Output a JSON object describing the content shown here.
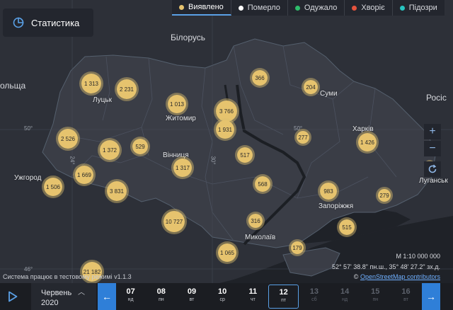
{
  "header": {
    "stat_button": "Статистика"
  },
  "filters": [
    {
      "label": "Виявлено",
      "color": "#e6c36e",
      "active": true
    },
    {
      "label": "Померло",
      "color": "#ffffff",
      "active": false
    },
    {
      "label": "Одужало",
      "color": "#2ebd6b",
      "active": false
    },
    {
      "label": "Хворіє",
      "color": "#e5533d",
      "active": false
    },
    {
      "label": "Підозри",
      "color": "#27c4c0",
      "active": false
    }
  ],
  "map": {
    "countries": {
      "belarus": "Білорусь",
      "poland": "ольща",
      "russia": "Росіс"
    },
    "places": {
      "lutsk": "Луцьк",
      "zhytomyr": "Житомир",
      "sumy": "Суми",
      "kharkiv": "Харків",
      "vinnytsia": "Вінниця",
      "uzhhorod": "Ужгород",
      "luhansk": "Луганськ",
      "zaporizhzhia": "Запоріжжя",
      "mykolaiv": "Миколаїв"
    },
    "grid": {
      "lat50_left": "50°",
      "lat50_mid": "50°",
      "lon24": "24°",
      "lon30": "30°",
      "lat46": "46°"
    },
    "clusters": [
      {
        "id": "c1313",
        "value": "1 313"
      },
      {
        "id": "c2231",
        "value": "2 231"
      },
      {
        "id": "c366",
        "value": "366"
      },
      {
        "id": "c204",
        "value": "204"
      },
      {
        "id": "c1013",
        "value": "1 013"
      },
      {
        "id": "c3766",
        "value": "3 766"
      },
      {
        "id": "c1931",
        "value": "1 931"
      },
      {
        "id": "c2526",
        "value": "2 526"
      },
      {
        "id": "c1372",
        "value": "1 372"
      },
      {
        "id": "c529",
        "value": "529"
      },
      {
        "id": "c277",
        "value": "277"
      },
      {
        "id": "c1426",
        "value": "1 426"
      },
      {
        "id": "c517",
        "value": "517"
      },
      {
        "id": "c1317",
        "value": "1 317"
      },
      {
        "id": "c1669",
        "value": "1 669"
      },
      {
        "id": "c1506",
        "value": "1 506"
      },
      {
        "id": "c3831",
        "value": "3 831"
      },
      {
        "id": "c568",
        "value": "568"
      },
      {
        "id": "c983",
        "value": "983"
      },
      {
        "id": "c279",
        "value": "279"
      },
      {
        "id": "c10727",
        "value": "10 727"
      },
      {
        "id": "c316",
        "value": "316"
      },
      {
        "id": "c515",
        "value": "515"
      },
      {
        "id": "c179",
        "value": "179"
      },
      {
        "id": "c1065",
        "value": "1 065"
      },
      {
        "id": "c21182",
        "value": "21 182"
      }
    ],
    "controls": {
      "zoom_in": "+",
      "zoom_out": "−"
    },
    "scale": "М 1:10 000 000",
    "coords": "52° 57' 38.8\" пн.ш., 35° 48' 27.2\" зх.д.",
    "attribution_prefix": "© ",
    "attribution_link": "OpenStreetMap contributors",
    "system_note": "Система працює в тестовому режимі v1.1.3"
  },
  "timeline": {
    "month": "Червень",
    "year": "2020",
    "days": [
      {
        "num": "07",
        "wd": "нд",
        "state": "past"
      },
      {
        "num": "08",
        "wd": "пн",
        "state": "past"
      },
      {
        "num": "09",
        "wd": "вт",
        "state": "past"
      },
      {
        "num": "10",
        "wd": "ср",
        "state": "past"
      },
      {
        "num": "11",
        "wd": "чт",
        "state": "past"
      },
      {
        "num": "12",
        "wd": "пт",
        "state": "selected"
      },
      {
        "num": "13",
        "wd": "сб",
        "state": "future"
      },
      {
        "num": "14",
        "wd": "нд",
        "state": "future"
      },
      {
        "num": "15",
        "wd": "пн",
        "state": "future"
      },
      {
        "num": "16",
        "wd": "вт",
        "state": "future"
      }
    ]
  }
}
